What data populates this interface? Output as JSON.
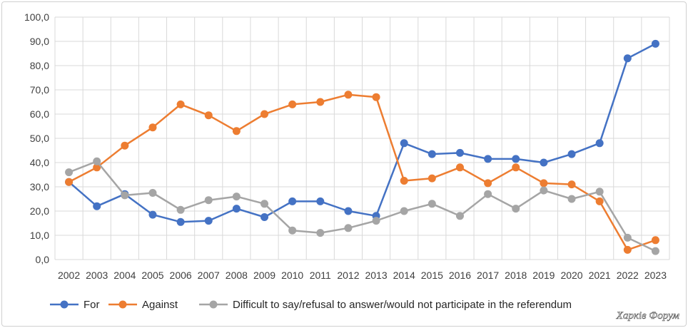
{
  "chart_data": {
    "type": "line",
    "title": "",
    "xlabel": "",
    "ylabel": "",
    "ylim": [
      0,
      100
    ],
    "yticks": [
      0,
      10,
      20,
      30,
      40,
      50,
      60,
      70,
      80,
      90,
      100
    ],
    "ytick_labels": [
      "0,0",
      "10,0",
      "20,0",
      "30,0",
      "40,0",
      "50,0",
      "60,0",
      "70,0",
      "80,0",
      "90,0",
      "100,0"
    ],
    "grid": true,
    "legend_position": "bottom-left",
    "categories": [
      "2002",
      "2003",
      "2004",
      "2005",
      "2006",
      "2007",
      "2008",
      "2009",
      "2010",
      "2011",
      "2012",
      "2013",
      "2014",
      "2015",
      "2016",
      "2017",
      "2018",
      "2019",
      "2020",
      "2021",
      "2022",
      "2023"
    ],
    "series": [
      {
        "name": "For",
        "color": "#4472c4",
        "values": [
          32,
          22,
          27,
          18.5,
          15.5,
          16,
          21,
          17.5,
          24,
          24,
          20,
          18,
          48,
          43.5,
          44,
          41.5,
          41.5,
          40,
          43.5,
          48,
          83,
          89
        ]
      },
      {
        "name": "Against",
        "color": "#ed7d31",
        "values": [
          32,
          38,
          47,
          54.5,
          64,
          59.5,
          53,
          60,
          64,
          65,
          68,
          67,
          32.5,
          33.5,
          38,
          31.5,
          38,
          31.5,
          31,
          24,
          4,
          8
        ]
      },
      {
        "name": "Difficult to say/refusal to answer/would not participate in the referendum",
        "color": "#a5a5a5",
        "values": [
          36,
          40.5,
          26.5,
          27.5,
          20.5,
          24.5,
          26,
          23,
          12,
          11,
          13,
          16,
          20,
          23,
          18,
          27,
          21,
          28.5,
          25,
          28,
          9,
          3.5
        ]
      }
    ]
  },
  "watermark": "Харків Форум"
}
